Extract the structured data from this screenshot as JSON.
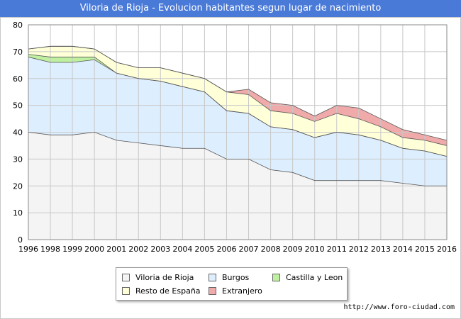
{
  "title": "Viloria de Rioja - Evolucion habitantes segun lugar de nacimiento",
  "source": "http://www.foro-ciudad.com",
  "chart_data": {
    "type": "area",
    "stacked": true,
    "title": "Viloria de Rioja - Evolucion habitantes segun lugar de nacimiento",
    "x_labels": [
      "1996",
      "1998",
      "1999",
      "2000",
      "2001",
      "2002",
      "2003",
      "2004",
      "2005",
      "2006",
      "2007",
      "2008",
      "2009",
      "2010",
      "2011",
      "2012",
      "2013",
      "2014",
      "2015",
      "2016"
    ],
    "ylim": [
      0,
      80
    ],
    "yticks": [
      0,
      10,
      20,
      30,
      40,
      50,
      60,
      70,
      80
    ],
    "grid": true,
    "legend_position": "bottom",
    "series": [
      {
        "name": "Viloria de Rioja",
        "color": "#f4f4f4",
        "values": [
          40,
          39,
          39,
          40,
          37,
          36,
          35,
          34,
          34,
          30,
          30,
          26,
          25,
          22,
          22,
          22,
          22,
          21,
          20,
          20
        ]
      },
      {
        "name": "Burgos",
        "color": "#ddeeff",
        "values": [
          28,
          27,
          27,
          27,
          25,
          24,
          24,
          23,
          21,
          18,
          17,
          16,
          16,
          16,
          18,
          17,
          15,
          13,
          13,
          11
        ]
      },
      {
        "name": "Castilla y Leon",
        "color": "#bff0a0",
        "values": [
          1,
          2,
          2,
          1,
          0,
          0,
          0,
          0,
          0,
          0,
          0,
          0,
          0,
          0,
          0,
          0,
          0,
          0,
          0,
          0
        ]
      },
      {
        "name": "Resto de España",
        "color": "#ffffd8",
        "values": [
          2,
          4,
          4,
          3,
          4,
          4,
          5,
          5,
          5,
          7,
          7,
          6,
          6,
          6,
          7,
          6,
          5,
          4,
          4,
          4
        ]
      },
      {
        "name": "Extranjero",
        "color": "#f0aaaa",
        "values": [
          0,
          0,
          0,
          0,
          0,
          0,
          0,
          0,
          0,
          0,
          2,
          3,
          3,
          2,
          3,
          4,
          3,
          3,
          2,
          2
        ]
      }
    ]
  }
}
